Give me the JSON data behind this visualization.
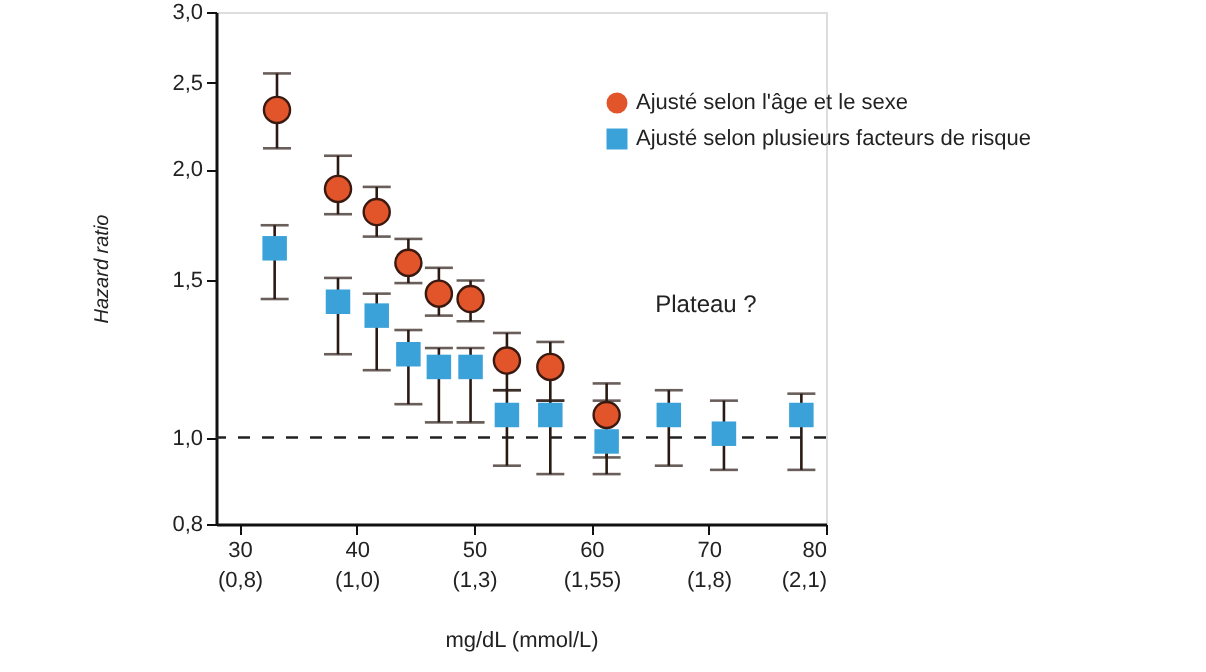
{
  "chart_data": {
    "type": "scatter",
    "ylabel": "Hazard ratio",
    "xlabel": "mg/dL (mmol/L)",
    "log": "y",
    "legend": "top right",
    "grid": false,
    "xlim": [
      28,
      80
    ],
    "xticks": [
      30,
      40,
      50,
      60,
      70,
      80
    ],
    "x2lim": [
      0.724,
      2.069
    ],
    "x2ticks": [
      {
        "value": 0.776,
        "label": "(0,8)"
      },
      {
        "value": 1.034,
        "label": "(1,0)"
      },
      {
        "value": 1.293,
        "label": "(1,3)"
      },
      {
        "value": 1.552,
        "label": "(1,55)"
      },
      {
        "value": 1.81,
        "label": "(1,8)"
      },
      {
        "value": 2.069,
        "label": "(2,1)"
      }
    ],
    "ylim": [
      0.8,
      3.0
    ],
    "yticks": [
      {
        "value": 0.8,
        "label": "0,8"
      },
      {
        "value": 1.0,
        "label": "1,0"
      },
      {
        "value": 1.5,
        "label": "1,5"
      },
      {
        "value": 2.0,
        "label": "2,0"
      },
      {
        "value": 2.5,
        "label": "2,5"
      },
      {
        "value": 3.0,
        "label": "3,0"
      }
    ],
    "ref_lines": [
      {
        "axis": "y",
        "value": 1.0,
        "label": null,
        "color": "#222222",
        "line_style": "dashed"
      }
    ],
    "annotations": [
      "Plateau ?"
    ],
    "series": [
      {
        "name": "Ajusté selon l'âge et le sexe",
        "color": "#e2542a",
        "marker": "circle",
        "x": [
          33.2,
          38.4,
          41.7,
          44.4,
          47.0,
          49.7,
          52.8,
          56.5,
          61.3
        ],
        "values": [
          2.33,
          1.9,
          1.79,
          1.57,
          1.45,
          1.43,
          1.22,
          1.2,
          1.06
        ],
        "errors": [
          [
            2.11,
            2.56
          ],
          [
            1.78,
            2.07
          ],
          [
            1.68,
            1.91
          ],
          [
            1.49,
            1.67
          ],
          [
            1.37,
            1.55
          ],
          [
            1.35,
            1.5
          ],
          [
            1.13,
            1.31
          ],
          [
            1.1,
            1.28
          ],
          [
            0.95,
            1.15
          ]
        ]
      },
      {
        "name": "Ajusté selon plusieurs facteurs de risque",
        "color": "#3aa2d8",
        "marker": "square",
        "x": [
          33.0,
          38.4,
          41.7,
          44.4,
          47.0,
          49.7,
          52.8,
          56.5,
          61.3,
          66.6,
          71.3,
          77.9
        ],
        "values": [
          1.63,
          1.42,
          1.37,
          1.24,
          1.2,
          1.2,
          1.06,
          1.06,
          0.99,
          1.06,
          1.01,
          1.06
        ],
        "errors": [
          [
            1.43,
            1.73
          ],
          [
            1.24,
            1.51
          ],
          [
            1.19,
            1.45
          ],
          [
            1.09,
            1.32
          ],
          [
            1.04,
            1.26
          ],
          [
            1.04,
            1.26
          ],
          [
            0.93,
            1.13
          ],
          [
            0.91,
            1.1
          ],
          [
            0.91,
            1.1
          ],
          [
            0.93,
            1.13
          ],
          [
            0.92,
            1.1
          ],
          [
            0.92,
            1.12
          ]
        ]
      }
    ]
  }
}
